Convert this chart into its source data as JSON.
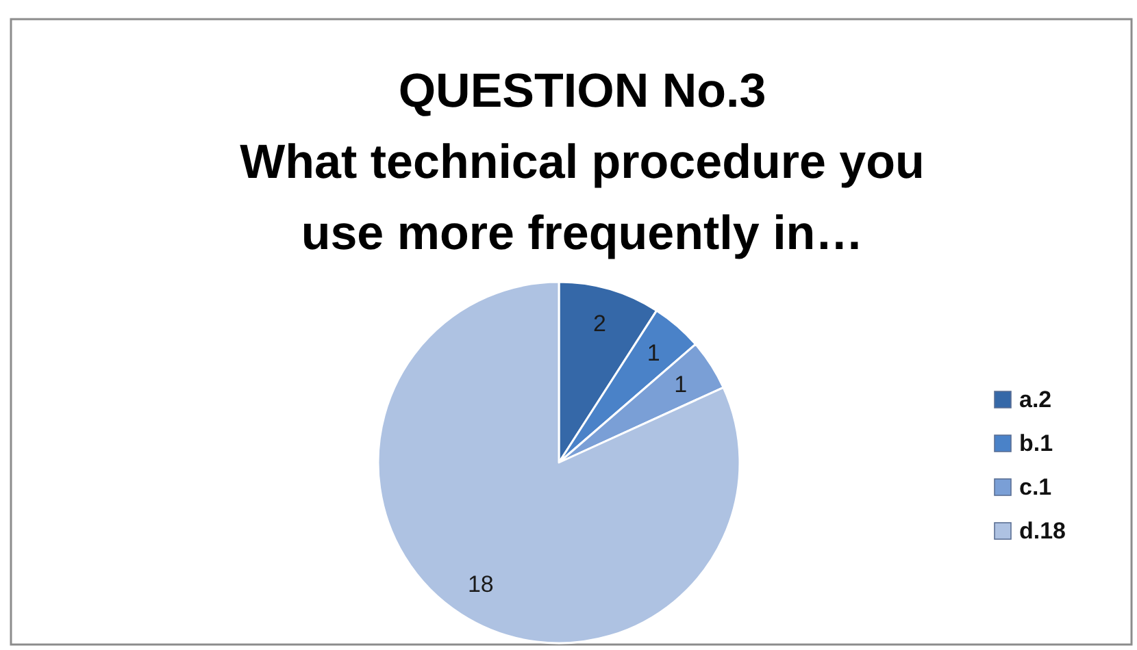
{
  "chart_data": {
    "type": "pie",
    "title": "QUESTION No.3\nWhat technical procedure you\nuse more frequently in…",
    "categories": [
      "a.2",
      "b.1",
      "c.1",
      "d.18"
    ],
    "values": [
      2,
      1,
      1,
      18
    ],
    "colors": [
      "#3568a8",
      "#4a82c8",
      "#7a9fd6",
      "#aec2e2"
    ],
    "data_labels": true,
    "legend": "right"
  }
}
